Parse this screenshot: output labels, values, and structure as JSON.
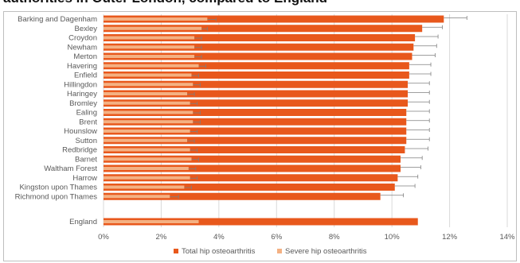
{
  "chart_data": {
    "type": "bar",
    "title": "authorities in Outer London, compared to England",
    "categories": [
      "Barking and Dagenham",
      "Bexley",
      "Croydon",
      "Newham",
      "Merton",
      "Havering",
      "Enfield",
      "Hillingdon",
      "Haringey",
      "Bromley",
      "Ealing",
      "Brent",
      "Hounslow",
      "Sutton",
      "Redbridge",
      "Barnet",
      "Waltham Forest",
      "Harrow",
      "Kingston upon Thames",
      "Richmond upon Thames",
      "England"
    ],
    "series": [
      {
        "name": "Total hip osteoarthritis",
        "color": "#e8581c",
        "values": [
          11.8,
          11.05,
          10.8,
          10.75,
          10.7,
          10.6,
          10.6,
          10.55,
          10.55,
          10.55,
          10.5,
          10.5,
          10.5,
          10.5,
          10.45,
          10.3,
          10.3,
          10.2,
          10.1,
          9.6,
          10.9
        ],
        "error_upper": [
          12.6,
          11.75,
          11.6,
          11.55,
          11.5,
          11.35,
          11.35,
          11.3,
          11.3,
          11.3,
          11.3,
          11.3,
          11.3,
          11.3,
          11.25,
          11.05,
          11.0,
          10.9,
          10.8,
          10.4,
          null
        ]
      },
      {
        "name": "Severe hip osteoarthritis",
        "color": "#f4b183",
        "values": [
          3.6,
          3.4,
          3.15,
          3.15,
          3.15,
          3.3,
          3.05,
          3.1,
          2.9,
          3.0,
          3.1,
          3.1,
          3.0,
          2.9,
          3.0,
          3.05,
          2.95,
          3.0,
          2.8,
          2.3,
          3.3
        ],
        "error_upper": [
          3.9,
          3.6,
          3.4,
          3.4,
          3.4,
          3.55,
          3.3,
          3.35,
          3.15,
          3.25,
          3.35,
          3.35,
          3.25,
          3.15,
          3.25,
          3.3,
          3.2,
          3.25,
          3.05,
          2.6,
          null
        ]
      }
    ],
    "xlim": [
      0,
      14
    ],
    "xticks": [
      0,
      2,
      4,
      6,
      8,
      10,
      12,
      14
    ],
    "xtick_labels": [
      "0%",
      "2%",
      "4%",
      "6%",
      "8%",
      "10%",
      "12%",
      "14%"
    ],
    "orientation": "horizontal",
    "grid": true,
    "legend_position": "bottom"
  }
}
